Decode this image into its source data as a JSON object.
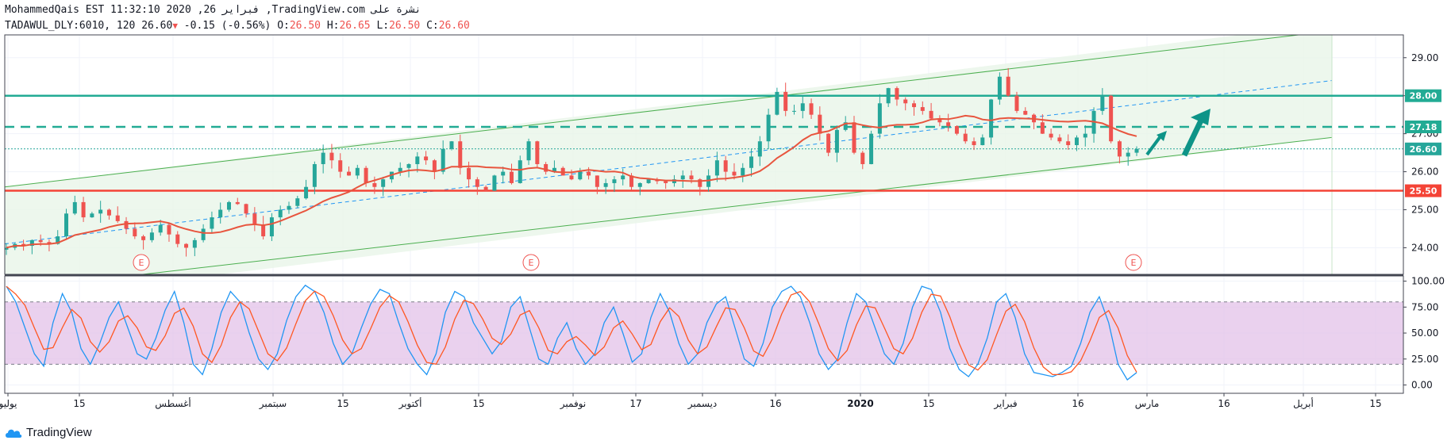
{
  "header": {
    "line1": "MohammedQais EST 11:32:10 2020 ,26 فبراير ,TradingView.com نشرة على",
    "symbol": "TADAWUL_DLY:6010, 120",
    "last": "26.60",
    "arrow": "▼",
    "change": "-0.15 (-0.56%)",
    "o_label": "O:",
    "o_val": "26.50",
    "h_label": "H:",
    "h_val": "26.65",
    "l_label": "L:",
    "l_val": "26.50",
    "c_label": "C:",
    "c_val": "26.60"
  },
  "logo_text": "TradingView",
  "colors": {
    "up": "#26a69a",
    "down": "#ef5350",
    "ma": "#e8553e",
    "channel": "#4caf50",
    "channel_fill": "#e8f5e9",
    "level_28": "#22ab94",
    "level_2718": "#22ab94",
    "level_2550": "#f44336",
    "level_2660": "#26a69a",
    "stoch_k": "#2196f3",
    "stoch_d": "#ff5722",
    "stoch_band": "#e1bee7",
    "midline": "#2196f3"
  },
  "chart_data": [
    {
      "type": "candlestick",
      "symbol": "TADAWUL_DLY:6010",
      "interval": "120",
      "y_ticks": [
        "29.00",
        "28.00",
        "27.00",
        "26.00",
        "25.00",
        "24.00"
      ],
      "ylim": [
        23.3,
        29.6
      ],
      "x_ticks": [
        "يوليو",
        "15",
        "أغسطس",
        "سبتمبر",
        "15",
        "أكتوبر",
        "15",
        "نوفمبر",
        "17",
        "ديسمبر",
        "16",
        "2020",
        "15",
        "فبراير",
        "16",
        "مارس",
        "16",
        "أبريل",
        "15"
      ],
      "price_levels": [
        {
          "value": 28.0,
          "label": "28.00",
          "style": "solid"
        },
        {
          "value": 27.18,
          "label": "27.18",
          "style": "dashed"
        },
        {
          "value": 26.6,
          "label": "26.60",
          "style": "dotted"
        },
        {
          "value": 25.5,
          "label": "25.50",
          "style": "solid"
        }
      ],
      "earnings_markers": [
        "E",
        "E",
        "E"
      ],
      "close_series": [
        24.0,
        24.1,
        24.05,
        24.2,
        24.15,
        24.1,
        24.3,
        24.9,
        25.2,
        24.8,
        24.9,
        25.0,
        24.85,
        24.7,
        24.5,
        24.3,
        24.2,
        24.4,
        24.6,
        24.35,
        24.1,
        24.0,
        24.2,
        24.5,
        24.8,
        25.0,
        25.2,
        25.15,
        24.9,
        24.6,
        24.3,
        24.8,
        25.0,
        25.1,
        25.3,
        25.6,
        26.2,
        26.5,
        26.3,
        26.0,
        25.9,
        26.1,
        25.7,
        25.6,
        25.8,
        26.0,
        26.1,
        26.2,
        26.4,
        26.3,
        26.0,
        26.6,
        26.8,
        26.1,
        25.8,
        25.6,
        25.5,
        25.9,
        26.0,
        25.7,
        26.3,
        26.8,
        26.2,
        26.0,
        26.1,
        25.9,
        25.8,
        26.0,
        25.9,
        25.6,
        25.7,
        25.8,
        25.9,
        25.6,
        25.7,
        25.8,
        25.75,
        25.7,
        25.8,
        25.9,
        25.8,
        25.6,
        25.9,
        26.3,
        26.0,
        25.9,
        26.1,
        26.4,
        26.8,
        27.5,
        28.1,
        27.6,
        27.6,
        27.8,
        27.5,
        27.0,
        26.5,
        27.1,
        27.3,
        26.5,
        26.2,
        27.0,
        27.8,
        28.2,
        27.9,
        27.8,
        27.7,
        27.6,
        27.4,
        27.3,
        27.2,
        27.0,
        26.8,
        26.7,
        26.9,
        27.9,
        28.5,
        28.0,
        27.6,
        27.5,
        27.3,
        27.0,
        26.9,
        26.8,
        26.7,
        26.9,
        27.0,
        27.6,
        28.0,
        26.8,
        26.4,
        26.5,
        26.6
      ]
    },
    {
      "type": "line",
      "name_hidden": "stochastic",
      "y_ticks": [
        "100.00",
        "75.00",
        "50.00",
        "25.00",
        "0.00"
      ],
      "ylim": [
        -8,
        105
      ],
      "bands": [
        20,
        80
      ],
      "k": [
        95,
        80,
        55,
        30,
        18,
        60,
        88,
        70,
        35,
        20,
        40,
        65,
        80,
        55,
        30,
        25,
        45,
        72,
        90,
        60,
        20,
        10,
        35,
        70,
        90,
        80,
        50,
        25,
        15,
        30,
        62,
        85,
        96,
        90,
        70,
        40,
        20,
        30,
        55,
        78,
        92,
        88,
        60,
        35,
        20,
        10,
        30,
        70,
        90,
        85,
        60,
        45,
        30,
        42,
        75,
        85,
        55,
        25,
        20,
        45,
        60,
        35,
        20,
        30,
        60,
        75,
        50,
        22,
        30,
        65,
        88,
        70,
        40,
        20,
        30,
        60,
        78,
        85,
        55,
        25,
        18,
        40,
        75,
        90,
        95,
        85,
        60,
        30,
        15,
        25,
        60,
        88,
        80,
        55,
        30,
        20,
        40,
        75,
        95,
        92,
        70,
        35,
        15,
        8,
        20,
        45,
        80,
        88,
        65,
        30,
        12,
        10,
        8,
        12,
        18,
        40,
        70,
        85,
        60,
        20,
        5,
        12
      ]
    }
  ]
}
